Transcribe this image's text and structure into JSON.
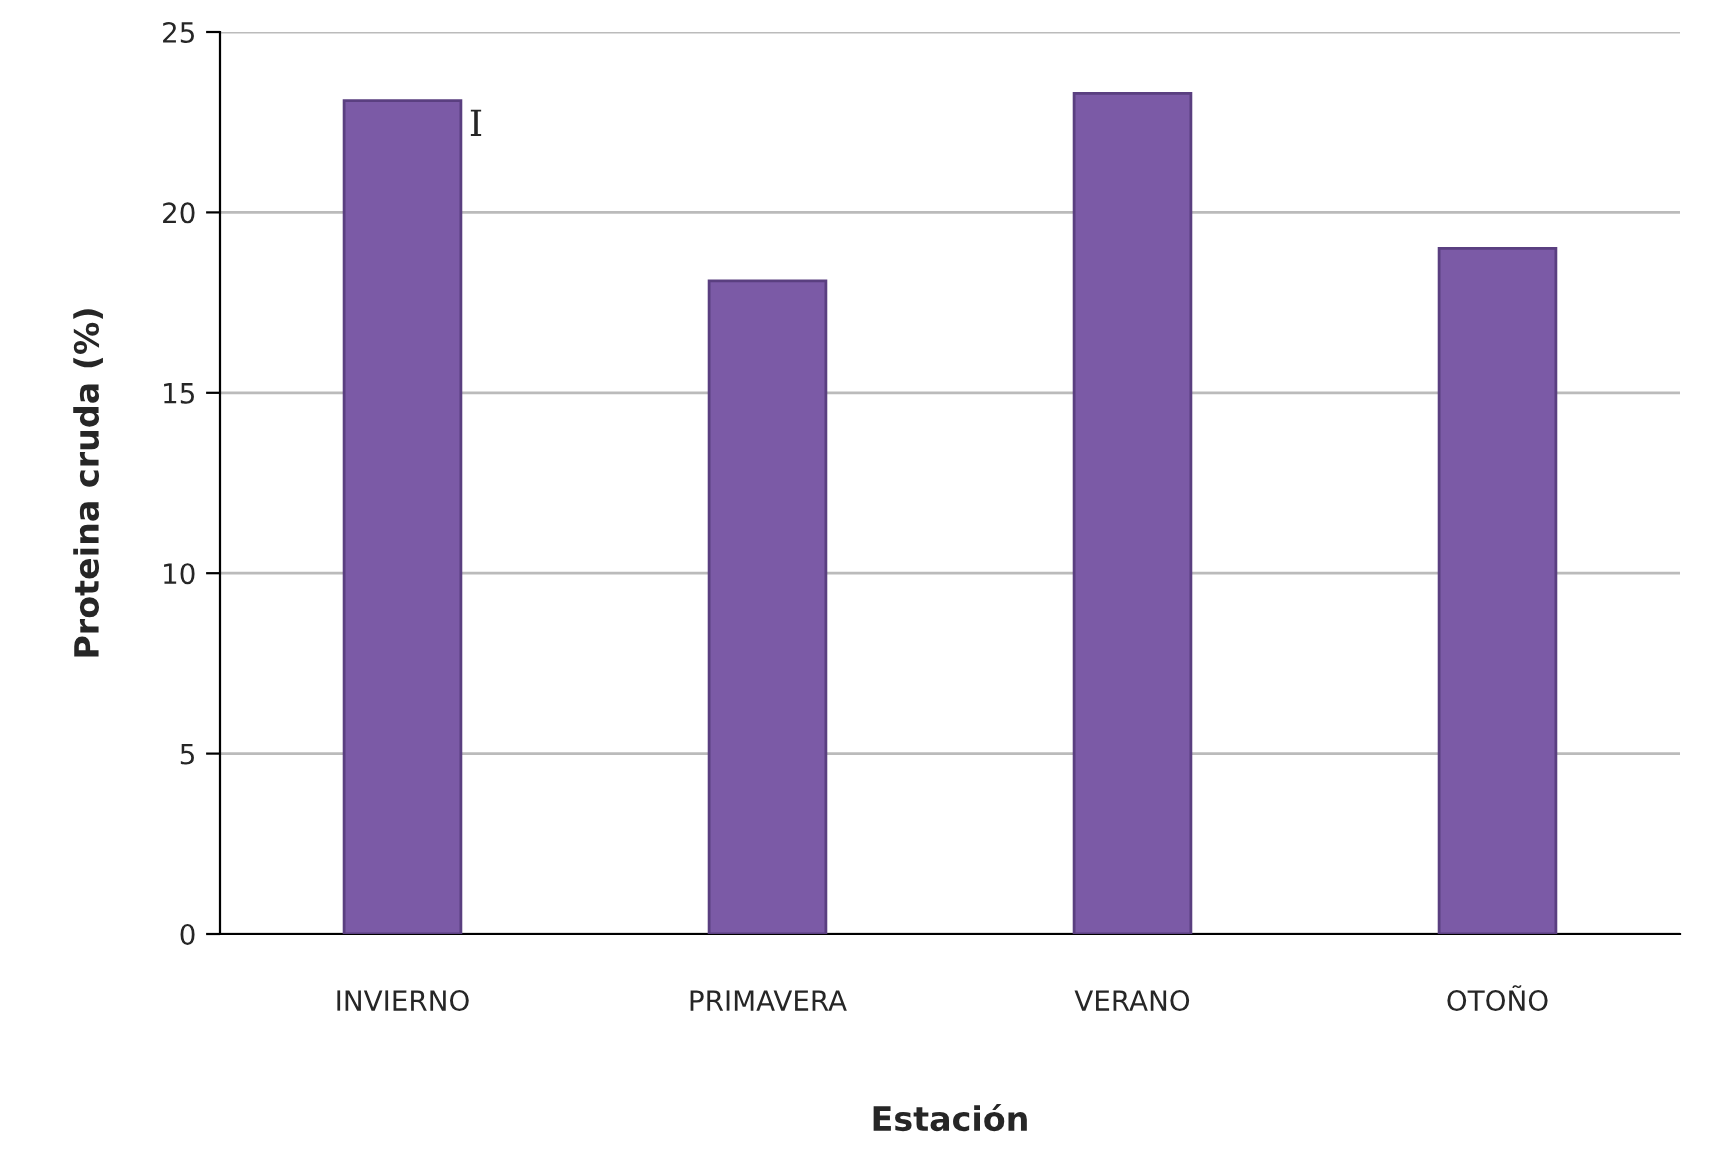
{
  "chart_data": {
    "type": "bar",
    "xlabel": "Estación",
    "ylabel": "Proteina cruda (%)",
    "categories": [
      "INVIERNO",
      "PRIMAVERA",
      "VERANO",
      "OTOÑO"
    ],
    "values": [
      23.1,
      18.1,
      23.3,
      19.0
    ],
    "color": "#7b5aa6",
    "ylim": [
      0,
      25
    ],
    "yticks": [
      0,
      5,
      10,
      15,
      20,
      25
    ],
    "grid": "y",
    "annotations": [
      "I"
    ]
  }
}
